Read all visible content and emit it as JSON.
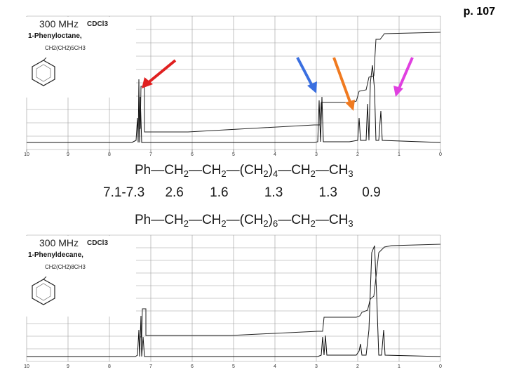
{
  "page": {
    "number": "p. 107"
  },
  "spectrum1": {
    "frequency": "300 MHz",
    "solvent": "CDCl3",
    "compound": "1-Phenyloctane,",
    "formula": "CH2(CH2)5CH3",
    "axis_ticks": [
      "10",
      "9",
      "8",
      "7",
      "6",
      "5",
      "4",
      "3",
      "2",
      "1",
      "0"
    ],
    "arrows": [
      "red",
      "blue",
      "orange",
      "magenta"
    ]
  },
  "spectrum2": {
    "frequency": "300 MHz",
    "solvent": "CDCl3",
    "compound": "1-Phenyldecane,",
    "formula": "CH2(CH2)8CH3",
    "axis_ticks": [
      "10",
      "9",
      "8",
      "7",
      "6",
      "5",
      "4",
      "3",
      "2",
      "1",
      "0"
    ]
  },
  "structure1": {
    "ph": "Ph",
    "ch2a": "CH",
    "ch2b": "CH",
    "chain_open": "(CH",
    "chain_close": ")",
    "chain_count": "4",
    "ch2c": "CH",
    "ch3": "CH",
    "sub2": "2",
    "sub3": "3"
  },
  "shifts": [
    "7.1-7.3",
    "2.6",
    "1.6",
    "1.3",
    "1.3",
    "0.9"
  ],
  "structure2": {
    "ph": "Ph",
    "ch2a": "CH",
    "ch2b": "CH",
    "chain_open": "(CH",
    "chain_close": ")",
    "chain_count": "6",
    "ch2c": "CH",
    "ch3": "CH",
    "sub2": "2",
    "sub3": "3"
  },
  "colors": {
    "arrow_red": "#e02020",
    "arrow_blue": "#3a6fe0",
    "arrow_orange": "#f07a20",
    "arrow_magenta": "#e040e0",
    "text_blue": "#1f1fc0",
    "text_orange": "#e0631a",
    "text_magenta": "#c820c8"
  }
}
